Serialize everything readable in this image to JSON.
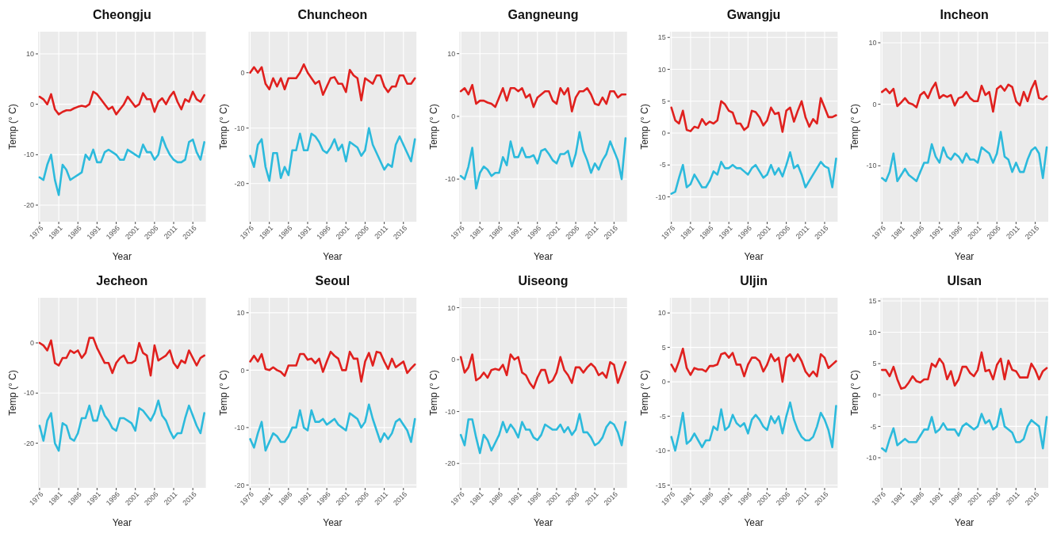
{
  "chart_data": [
    {
      "type": "line",
      "title": "Cheongju",
      "xlabel": "Year",
      "ylabel": "Temp (° C)",
      "x": [
        1976,
        1977,
        1978,
        1979,
        1980,
        1981,
        1982,
        1983,
        1984,
        1985,
        1986,
        1987,
        1988,
        1989,
        1990,
        1991,
        1992,
        1993,
        1994,
        1995,
        1996,
        1997,
        1998,
        1999,
        2000,
        2001,
        2002,
        2003,
        2004,
        2005,
        2006,
        2007,
        2008,
        2009,
        2010,
        2011,
        2012,
        2013,
        2014,
        2015,
        2016,
        2017,
        2018,
        2019
      ],
      "xlim": [
        1975.6,
        2019.4
      ],
      "xticks": [
        1976,
        1981,
        1986,
        1991,
        1996,
        2001,
        2006,
        2011,
        2016
      ],
      "ylim": [
        -23.3,
        14.4
      ],
      "yticks": [
        -20,
        -10,
        0,
        10
      ],
      "grid": true,
      "series": [
        {
          "color": "#e0201e",
          "values": [
            1.5,
            1,
            0,
            2,
            -1,
            -2,
            -1.5,
            -1.2,
            -1.2,
            -0.8,
            -0.5,
            -0.3,
            -0.5,
            0,
            2.5,
            2,
            1,
            0,
            -1,
            -0.5,
            -2,
            -1,
            0,
            1.5,
            0.5,
            -0.5,
            0,
            2.2,
            1,
            1,
            -1.5,
            0.5,
            1.2,
            0,
            1.5,
            2.5,
            0.5,
            -1,
            1,
            0.5,
            2.5,
            1,
            0.5,
            1.8
          ]
        },
        {
          "color": "#2cbadc",
          "values": [
            -14.5,
            -15,
            -12,
            -10,
            -15,
            -18,
            -12,
            -13,
            -15,
            -14.5,
            -14,
            -13.5,
            -10,
            -11,
            -9,
            -11.5,
            -11.5,
            -9.5,
            -9,
            -9.5,
            -10,
            -11,
            -11,
            -9,
            -9.5,
            -10,
            -10.5,
            -8,
            -9.5,
            -9.5,
            -11,
            -10,
            -6.5,
            -8.5,
            -10,
            -11,
            -11.5,
            -11.5,
            -11,
            -7.5,
            -7,
            -9.5,
            -11,
            -7.5
          ]
        }
      ]
    },
    {
      "type": "line",
      "title": "Chuncheon",
      "xlabel": "Year",
      "ylabel": "Temp (° C)",
      "x": [
        1976,
        1977,
        1978,
        1979,
        1980,
        1981,
        1982,
        1983,
        1984,
        1985,
        1986,
        1987,
        1988,
        1989,
        1990,
        1991,
        1992,
        1993,
        1994,
        1995,
        1996,
        1997,
        1998,
        1999,
        2000,
        2001,
        2002,
        2003,
        2004,
        2005,
        2006,
        2007,
        2008,
        2009,
        2010,
        2011,
        2012,
        2013,
        2014,
        2015,
        2016,
        2017,
        2018,
        2019
      ],
      "xlim": [
        1975.6,
        2019.4
      ],
      "xticks": [
        1976,
        1981,
        1986,
        1991,
        1996,
        2001,
        2006,
        2011,
        2016
      ],
      "ylim": [
        -26.9,
        7.4
      ],
      "yticks": [
        -20,
        -10,
        0
      ],
      "grid": true,
      "series": [
        {
          "color": "#e0201e",
          "values": [
            0,
            1,
            0,
            1,
            -2,
            -3,
            -1,
            -2.5,
            -1,
            -3,
            -1,
            -1,
            -1,
            0,
            1.5,
            0,
            -1,
            -2,
            -1.5,
            -4,
            -2.5,
            -1,
            -0.8,
            -2,
            -2,
            -3.5,
            0.5,
            -0.5,
            -1,
            -5,
            -1,
            -1.5,
            -2,
            -0.5,
            -0.5,
            -2.5,
            -3.5,
            -2.5,
            -2.5,
            -0.5,
            -0.5,
            -2,
            -2,
            -1
          ]
        },
        {
          "color": "#2cbadc",
          "values": [
            -15,
            -17,
            -13,
            -12,
            -17,
            -19.5,
            -14.5,
            -14.5,
            -19,
            -17,
            -18.5,
            -14,
            -14,
            -11,
            -14,
            -14,
            -11,
            -11.5,
            -12.5,
            -14,
            -14.5,
            -13.5,
            -12,
            -14,
            -13,
            -16,
            -12.5,
            -13,
            -13.5,
            -15,
            -14,
            -10,
            -13,
            -14.5,
            -16,
            -17.5,
            -16.5,
            -17,
            -13,
            -11.5,
            -13,
            -14.5,
            -16,
            -12
          ]
        }
      ]
    },
    {
      "type": "line",
      "title": "Gangneung",
      "xlabel": "Year",
      "ylabel": "Temp (° C)",
      "x": [
        1976,
        1977,
        1978,
        1979,
        1980,
        1981,
        1982,
        1983,
        1984,
        1985,
        1986,
        1987,
        1988,
        1989,
        1990,
        1991,
        1992,
        1993,
        1994,
        1995,
        1996,
        1997,
        1998,
        1999,
        2000,
        2001,
        2002,
        2003,
        2004,
        2005,
        2006,
        2007,
        2008,
        2009,
        2010,
        2011,
        2012,
        2013,
        2014,
        2015,
        2016,
        2017,
        2018,
        2019
      ],
      "xlim": [
        1975.6,
        2019.4
      ],
      "xticks": [
        1976,
        1981,
        1986,
        1991,
        1996,
        2001,
        2006,
        2011,
        2016
      ],
      "ylim": [
        -16.8,
        13.5
      ],
      "yticks": [
        -10,
        0,
        10
      ],
      "grid": true,
      "series": [
        {
          "color": "#e0201e",
          "values": [
            4,
            4.5,
            3.5,
            5,
            2,
            2.5,
            2.5,
            2.2,
            2,
            1.5,
            3,
            4.5,
            2.5,
            4.5,
            4.5,
            4,
            4.5,
            3,
            3.5,
            1.5,
            3,
            3.5,
            4,
            4,
            2.5,
            2,
            4.5,
            3.5,
            4.5,
            0.8,
            3,
            4,
            4,
            4.5,
            3.5,
            2,
            1.8,
            3,
            2,
            4,
            4,
            3,
            3.5,
            3.5
          ]
        },
        {
          "color": "#2cbadc",
          "values": [
            -9.5,
            -10,
            -8,
            -5,
            -11.5,
            -9,
            -8,
            -8.5,
            -9.5,
            -9,
            -9,
            -6.5,
            -7.8,
            -4,
            -6.5,
            -6.5,
            -5,
            -6.5,
            -6.5,
            -6.2,
            -7.5,
            -5.5,
            -5.2,
            -6,
            -7,
            -7.5,
            -6,
            -6,
            -5.5,
            -8,
            -6,
            -2.5,
            -5.5,
            -7,
            -9,
            -7.5,
            -8.5,
            -7,
            -6,
            -4,
            -5.5,
            -7,
            -10,
            -3.5
          ]
        }
      ]
    },
    {
      "type": "line",
      "title": "Gwangju",
      "xlabel": "Year",
      "ylabel": "Temp (° C)",
      "x": [
        1976,
        1977,
        1978,
        1979,
        1980,
        1981,
        1982,
        1983,
        1984,
        1985,
        1986,
        1987,
        1988,
        1989,
        1990,
        1991,
        1992,
        1993,
        1994,
        1995,
        1996,
        1997,
        1998,
        1999,
        2000,
        2001,
        2002,
        2003,
        2004,
        2005,
        2006,
        2007,
        2008,
        2009,
        2010,
        2011,
        2012,
        2013,
        2014,
        2015,
        2016,
        2017,
        2018,
        2019
      ],
      "xlim": [
        1975.6,
        2019.4
      ],
      "xticks": [
        1976,
        1981,
        1986,
        1991,
        1996,
        2001,
        2006,
        2011,
        2016
      ],
      "ylim": [
        -13.9,
        15.9
      ],
      "yticks": [
        -10,
        -5,
        0,
        5,
        10,
        15
      ],
      "grid": true,
      "series": [
        {
          "color": "#e0201e",
          "values": [
            4,
            2,
            1.5,
            3.5,
            0.5,
            0.3,
            1,
            0.8,
            2.2,
            1.3,
            1.8,
            1.5,
            2,
            5,
            4.5,
            3.5,
            3.2,
            1.5,
            1.5,
            0.5,
            1,
            3.5,
            3.3,
            2.5,
            1.2,
            2,
            4,
            3,
            3.2,
            0.2,
            3.5,
            4,
            1.8,
            3.5,
            5,
            2.5,
            1,
            2.2,
            1.5,
            5.5,
            4,
            2.5,
            2.5,
            2.8
          ]
        },
        {
          "color": "#2cbadc",
          "values": [
            -9.5,
            -9.2,
            -7,
            -5,
            -8.5,
            -8,
            -6.5,
            -7.5,
            -8.5,
            -8.5,
            -7.5,
            -6,
            -6.5,
            -4.5,
            -5.5,
            -5.5,
            -5,
            -5.5,
            -5.5,
            -6,
            -6.5,
            -5.5,
            -5,
            -6,
            -7,
            -6.5,
            -5,
            -6.5,
            -5.5,
            -6.8,
            -5,
            -3,
            -5.5,
            -5,
            -6.5,
            -8.5,
            -7.5,
            -6.5,
            -5.5,
            -4.5,
            -5.2,
            -5.5,
            -8.5,
            -4
          ]
        }
      ]
    },
    {
      "type": "line",
      "title": "Incheon",
      "xlabel": "Year",
      "ylabel": "Temp (° C)",
      "x": [
        1976,
        1977,
        1978,
        1979,
        1980,
        1981,
        1982,
        1983,
        1984,
        1985,
        1986,
        1987,
        1988,
        1989,
        1990,
        1991,
        1992,
        1993,
        1994,
        1995,
        1996,
        1997,
        1998,
        1999,
        2000,
        2001,
        2002,
        2003,
        2004,
        2005,
        2006,
        2007,
        2008,
        2009,
        2010,
        2011,
        2012,
        2013,
        2014,
        2015,
        2016,
        2017,
        2018,
        2019
      ],
      "xlim": [
        1975.6,
        2019.4
      ],
      "xticks": [
        1976,
        1981,
        1986,
        1991,
        1996,
        2001,
        2006,
        2011,
        2016
      ],
      "ylim": [
        -19.1,
        11.8
      ],
      "yticks": [
        -10,
        0,
        10
      ],
      "grid": true,
      "series": [
        {
          "color": "#e0201e",
          "values": [
            2,
            2.5,
            1.8,
            2.5,
            -0.3,
            0.3,
            1,
            0.2,
            0,
            -0.5,
            1.5,
            2,
            1,
            2.5,
            3.5,
            1,
            1.5,
            1.2,
            1.5,
            -0.2,
            1,
            1.2,
            2,
            1,
            0.5,
            0.5,
            3,
            1.5,
            2,
            -1.2,
            2.5,
            3,
            2.2,
            3.2,
            2.8,
            0.5,
            -0.2,
            2,
            0.5,
            2.5,
            3.8,
            1,
            0.8,
            1.3
          ]
        },
        {
          "color": "#2cbadc",
          "values": [
            -12,
            -12.5,
            -11,
            -8,
            -12.5,
            -11.5,
            -10.5,
            -11.5,
            -12,
            -12.5,
            -11,
            -9.5,
            -9.5,
            -6.5,
            -8.5,
            -9.5,
            -7,
            -8.5,
            -9,
            -8,
            -8.5,
            -9.5,
            -8,
            -9,
            -9,
            -9.5,
            -7,
            -7.5,
            -8,
            -9.5,
            -8,
            -4.5,
            -8.5,
            -9,
            -11,
            -9.5,
            -11,
            -11,
            -9,
            -7.5,
            -7,
            -8,
            -12,
            -7
          ]
        }
      ]
    },
    {
      "type": "line",
      "title": "Jecheon",
      "xlabel": "Year",
      "ylabel": "Temp (° C)",
      "x": [
        1976,
        1977,
        1978,
        1979,
        1980,
        1981,
        1982,
        1983,
        1984,
        1985,
        1986,
        1987,
        1988,
        1989,
        1990,
        1991,
        1992,
        1993,
        1994,
        1995,
        1996,
        1997,
        1998,
        1999,
        2000,
        2001,
        2002,
        2003,
        2004,
        2005,
        2006,
        2007,
        2008,
        2009,
        2010,
        2011,
        2012,
        2013,
        2014,
        2015,
        2016,
        2017,
        2018,
        2019
      ],
      "xlim": [
        1975.6,
        2019.4
      ],
      "xticks": [
        1976,
        1981,
        1986,
        1991,
        1996,
        2001,
        2006,
        2011,
        2016
      ],
      "ylim": [
        -28.9,
        9
      ],
      "yticks": [
        -20,
        -10,
        0
      ],
      "grid": true,
      "series": [
        {
          "color": "#e0201e",
          "values": [
            0,
            -0.5,
            -1.5,
            0.5,
            -4,
            -4.5,
            -3,
            -3,
            -1.5,
            -2,
            -1.5,
            -3,
            -2,
            1,
            1,
            -1,
            -2.5,
            -4,
            -4,
            -6,
            -4,
            -3,
            -2.5,
            -4,
            -4,
            -3.5,
            0,
            -2,
            -2.5,
            -6.5,
            -0.5,
            -3.5,
            -3,
            -2.5,
            -1.5,
            -4,
            -5,
            -3.5,
            -4,
            -1.5,
            -3,
            -4.5,
            -3,
            -2.5
          ]
        },
        {
          "color": "#2cbadc",
          "values": [
            -16.5,
            -19.5,
            -15.5,
            -14,
            -20,
            -21.5,
            -16,
            -16.5,
            -19,
            -19.5,
            -18,
            -15,
            -15,
            -12.5,
            -15.5,
            -15.5,
            -12.5,
            -14.5,
            -15.5,
            -17,
            -17.5,
            -15,
            -15,
            -15.5,
            -16,
            -17.5,
            -13,
            -13.5,
            -14.5,
            -15.5,
            -14,
            -11.5,
            -14.5,
            -15.5,
            -17.5,
            -19,
            -18,
            -18,
            -15,
            -12.5,
            -14.5,
            -16.5,
            -18,
            -14
          ]
        }
      ]
    },
    {
      "type": "line",
      "title": "Seoul",
      "xlabel": "Year",
      "ylabel": "Temp (° C)",
      "x": [
        1976,
        1977,
        1978,
        1979,
        1980,
        1981,
        1982,
        1983,
        1984,
        1985,
        1986,
        1987,
        1988,
        1989,
        1990,
        1991,
        1992,
        1993,
        1994,
        1995,
        1996,
        1997,
        1998,
        1999,
        2000,
        2001,
        2002,
        2003,
        2004,
        2005,
        2006,
        2007,
        2008,
        2009,
        2010,
        2011,
        2012,
        2013,
        2014,
        2015,
        2016,
        2017,
        2018,
        2019
      ],
      "xlim": [
        1975.6,
        2019.4
      ],
      "xticks": [
        1976,
        1981,
        1986,
        1991,
        1996,
        2001,
        2006,
        2011,
        2016
      ],
      "ylim": [
        -20.5,
        12.6
      ],
      "yticks": [
        -20,
        -10,
        0,
        10
      ],
      "grid": true,
      "series": [
        {
          "color": "#e0201e",
          "values": [
            1.5,
            2.5,
            1.5,
            2.8,
            0.2,
            0,
            0.5,
            0,
            -0.3,
            -1,
            0.8,
            0.8,
            0.8,
            2.8,
            2.8,
            1.8,
            2,
            1.2,
            2,
            -0.3,
            1.5,
            3.2,
            2.5,
            2,
            0,
            0,
            3.2,
            2,
            2,
            -2,
            1.5,
            3,
            0.8,
            3.2,
            3,
            1.5,
            0.2,
            2,
            0.5,
            1,
            1.5,
            -0.5,
            0.3,
            1
          ]
        },
        {
          "color": "#2cbadc",
          "values": [
            -12,
            -13.5,
            -11,
            -9,
            -14,
            -12.5,
            -11,
            -11.5,
            -12.5,
            -12.5,
            -11.5,
            -10,
            -10,
            -7,
            -10,
            -10.5,
            -7,
            -9,
            -9,
            -8.5,
            -9.5,
            -9,
            -8.5,
            -9.5,
            -10,
            -10.5,
            -7.5,
            -8,
            -8.5,
            -10,
            -9,
            -6,
            -8.5,
            -10.5,
            -12.5,
            -11,
            -12,
            -11,
            -9,
            -8.5,
            -9.5,
            -10.5,
            -12.5,
            -8.5
          ]
        }
      ]
    },
    {
      "type": "line",
      "title": "Uiseong",
      "xlabel": "Year",
      "ylabel": "Temp (° C)",
      "x": [
        1976,
        1977,
        1978,
        1979,
        1980,
        1981,
        1982,
        1983,
        1984,
        1985,
        1986,
        1987,
        1988,
        1989,
        1990,
        1991,
        1992,
        1993,
        1994,
        1995,
        1996,
        1997,
        1998,
        1999,
        2000,
        2001,
        2002,
        2003,
        2004,
        2005,
        2006,
        2007,
        2008,
        2009,
        2010,
        2011,
        2012,
        2013,
        2014,
        2015,
        2016,
        2017,
        2018,
        2019
      ],
      "xlim": [
        1975.6,
        2019.4
      ],
      "xticks": [
        1976,
        1981,
        1986,
        1991,
        1996,
        2001,
        2006,
        2011,
        2016
      ],
      "ylim": [
        -24.7,
        11.9
      ],
      "yticks": [
        -20,
        -10,
        0,
        10
      ],
      "grid": true,
      "series": [
        {
          "color": "#e0201e",
          "values": [
            0.5,
            -2.5,
            -1.5,
            1,
            -4,
            -3.5,
            -2.5,
            -3.5,
            -2,
            -1.8,
            -2,
            -1,
            -3,
            1,
            0,
            0.5,
            -2.5,
            -3,
            -4.5,
            -5.5,
            -3.5,
            -2,
            -2,
            -4.5,
            -4,
            -2.5,
            0.5,
            -2,
            -3,
            -4.5,
            -1.5,
            -1.5,
            -2.5,
            -1.5,
            -0.8,
            -1.5,
            -3,
            -2.5,
            -3.5,
            -0.5,
            -1,
            -4.5,
            -2.5,
            -0.5
          ]
        },
        {
          "color": "#2cbadc",
          "values": [
            -14.5,
            -16.5,
            -11.5,
            -11.5,
            -15,
            -18,
            -14.5,
            -15.5,
            -17.5,
            -16,
            -14.5,
            -12,
            -14,
            -12.5,
            -13.5,
            -15,
            -12,
            -13.5,
            -13.5,
            -15,
            -15.5,
            -14.5,
            -12.5,
            -13,
            -13.5,
            -13.5,
            -12.5,
            -14,
            -13,
            -14.5,
            -13.5,
            -10.5,
            -14,
            -14,
            -15,
            -16.5,
            -16,
            -15,
            -13,
            -12,
            -12.5,
            -14,
            -16.5,
            -12
          ]
        }
      ]
    },
    {
      "type": "line",
      "title": "Uljin",
      "xlabel": "Year",
      "ylabel": "Temp (° C)",
      "x": [
        1976,
        1977,
        1978,
        1979,
        1980,
        1981,
        1982,
        1983,
        1984,
        1985,
        1986,
        1987,
        1988,
        1989,
        1990,
        1991,
        1992,
        1993,
        1994,
        1995,
        1996,
        1997,
        1998,
        1999,
        2000,
        2001,
        2002,
        2003,
        2004,
        2005,
        2006,
        2007,
        2008,
        2009,
        2010,
        2011,
        2012,
        2013,
        2014,
        2015,
        2016,
        2017,
        2018,
        2019
      ],
      "xlim": [
        1975.6,
        2019.4
      ],
      "xticks": [
        1976,
        1981,
        1986,
        1991,
        1996,
        2001,
        2006,
        2011,
        2016
      ],
      "ylim": [
        -15.4,
        12.2
      ],
      "yticks": [
        -15,
        -10,
        -5,
        0,
        5,
        10
      ],
      "grid": true,
      "series": [
        {
          "color": "#e0201e",
          "values": [
            2.5,
            1.5,
            3,
            4.8,
            2,
            1,
            2,
            1.8,
            1.8,
            1.5,
            2.3,
            2.3,
            2.5,
            4,
            4.2,
            3.5,
            4.2,
            2.5,
            2.5,
            0.8,
            2.5,
            3.5,
            3.5,
            3,
            1.5,
            2.5,
            4,
            3,
            3.5,
            0,
            3.5,
            4,
            3,
            4,
            3,
            1.5,
            0.8,
            1.5,
            0.8,
            4,
            3.5,
            2,
            2.5,
            3
          ]
        },
        {
          "color": "#2cbadc",
          "values": [
            -8,
            -10,
            -7.5,
            -4.5,
            -9,
            -8.5,
            -7.5,
            -8.5,
            -9.5,
            -8.5,
            -8.5,
            -6.5,
            -7,
            -4,
            -7,
            -6.5,
            -4.8,
            -6,
            -6.5,
            -6,
            -7.5,
            -5.5,
            -4.8,
            -5.5,
            -6.5,
            -7,
            -5,
            -6,
            -5,
            -7.5,
            -5,
            -3,
            -5.5,
            -7,
            -8,
            -8.5,
            -8.5,
            -8,
            -6.5,
            -4.5,
            -5.5,
            -7,
            -9.5,
            -3.5
          ]
        }
      ]
    },
    {
      "type": "line",
      "title": "Ulsan",
      "xlabel": "Year",
      "ylabel": "Temp (° C)",
      "x": [
        1976,
        1977,
        1978,
        1979,
        1980,
        1981,
        1982,
        1983,
        1984,
        1985,
        1986,
        1987,
        1988,
        1989,
        1990,
        1991,
        1992,
        1993,
        1994,
        1995,
        1996,
        1997,
        1998,
        1999,
        2000,
        2001,
        2002,
        2003,
        2004,
        2005,
        2006,
        2007,
        2008,
        2009,
        2010,
        2011,
        2012,
        2013,
        2014,
        2015,
        2016,
        2017,
        2018,
        2019
      ],
      "xlim": [
        1975.6,
        2019.4
      ],
      "xticks": [
        1976,
        1981,
        1986,
        1991,
        1996,
        2001,
        2006,
        2011,
        2016
      ],
      "ylim": [
        -14.8,
        15.5
      ],
      "yticks": [
        -10,
        -5,
        0,
        5,
        10,
        15
      ],
      "grid": true,
      "series": [
        {
          "color": "#e0201e",
          "values": [
            4,
            4,
            3,
            4.5,
            2.5,
            1,
            1.2,
            2,
            3,
            2.2,
            2,
            2.5,
            2.5,
            5,
            4.5,
            5.8,
            5,
            2.5,
            3.8,
            1.5,
            2.5,
            4.5,
            4.5,
            3.5,
            3,
            4,
            6.8,
            3.8,
            4,
            2.5,
            4.8,
            5.8,
            2.5,
            5.5,
            4,
            3.8,
            2.8,
            2.8,
            2.8,
            5,
            4,
            2.5,
            3.8,
            4.3
          ]
        },
        {
          "color": "#2cbadc",
          "values": [
            -8.5,
            -9,
            -7,
            -5.3,
            -8,
            -7.5,
            -7,
            -7.5,
            -7.5,
            -7.5,
            -6.5,
            -5.5,
            -5.5,
            -3.5,
            -6,
            -5.5,
            -4.5,
            -5.5,
            -5.5,
            -5.5,
            -6.5,
            -5,
            -4.5,
            -5,
            -5.5,
            -5,
            -3,
            -4.5,
            -4,
            -5.5,
            -5,
            -2.2,
            -5,
            -5.5,
            -6,
            -7.5,
            -7.5,
            -7,
            -5,
            -4,
            -4.5,
            -5,
            -8.5,
            -3.5
          ]
        }
      ]
    }
  ]
}
